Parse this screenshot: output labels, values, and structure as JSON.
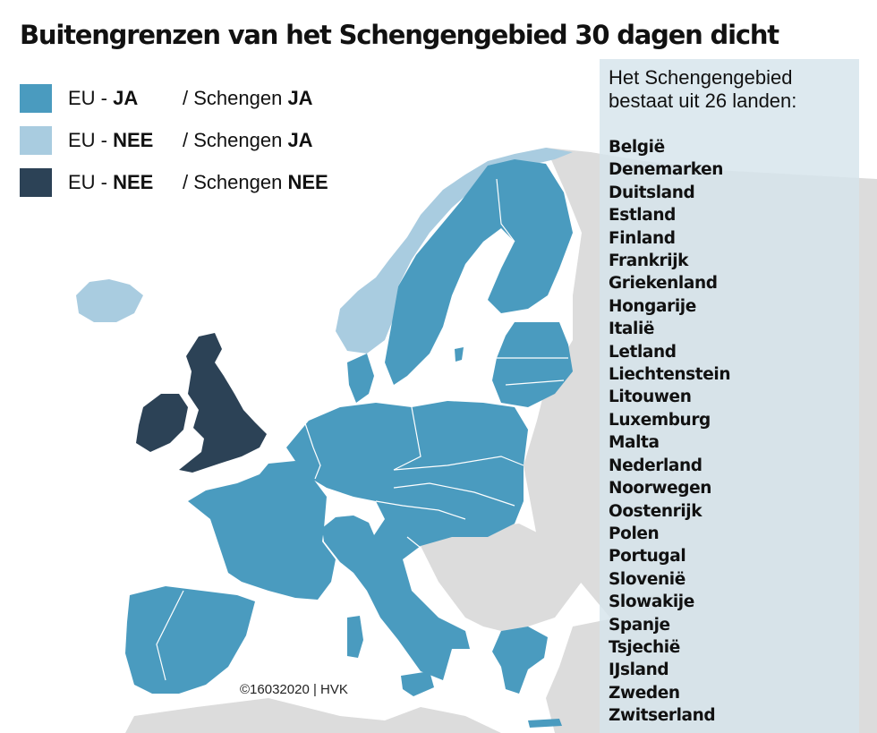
{
  "title": "Buitengrenzen van het Schengengebied 30 dagen dicht",
  "colors": {
    "eu_ja_schengen_ja": "#4a9bbf",
    "eu_nee_schengen_ja": "#a9cce0",
    "eu_nee_schengen_nee": "#2c4256",
    "other_land": "#dcdcdc",
    "sea": "#ffffff"
  },
  "legend": [
    {
      "eu_prefix": "EU - ",
      "eu_value": "JA",
      "schengen_prefix": "/ Schengen ",
      "schengen_value": "JA",
      "color_key": "eu_ja_schengen_ja"
    },
    {
      "eu_prefix": "EU - ",
      "eu_value": "NEE",
      "schengen_prefix": "/ Schengen ",
      "schengen_value": "JA",
      "color_key": "eu_nee_schengen_ja"
    },
    {
      "eu_prefix": "EU - ",
      "eu_value": "NEE",
      "schengen_prefix": "/ Schengen ",
      "schengen_value": "NEE",
      "color_key": "eu_nee_schengen_nee"
    }
  ],
  "panel": {
    "heading_line1": "Het Schengengebied",
    "heading_line2": "bestaat uit 26 landen:",
    "countries": [
      "België",
      "Denemarken",
      "Duitsland",
      "Estland",
      "Finland",
      "Frankrijk",
      "Griekenland",
      "Hongarije",
      "Italië",
      "Letland",
      "Liechtenstein",
      "Litouwen",
      "Luxemburg",
      "Malta",
      "Nederland",
      "Noorwegen",
      "Oostenrijk",
      "Polen",
      "Portugal",
      "Slovenië",
      "Slowakije",
      "Spanje",
      "Tsjechië",
      "IJsland",
      "Zweden",
      "Zwitserland"
    ]
  },
  "credit": "©16032020 | HVK"
}
